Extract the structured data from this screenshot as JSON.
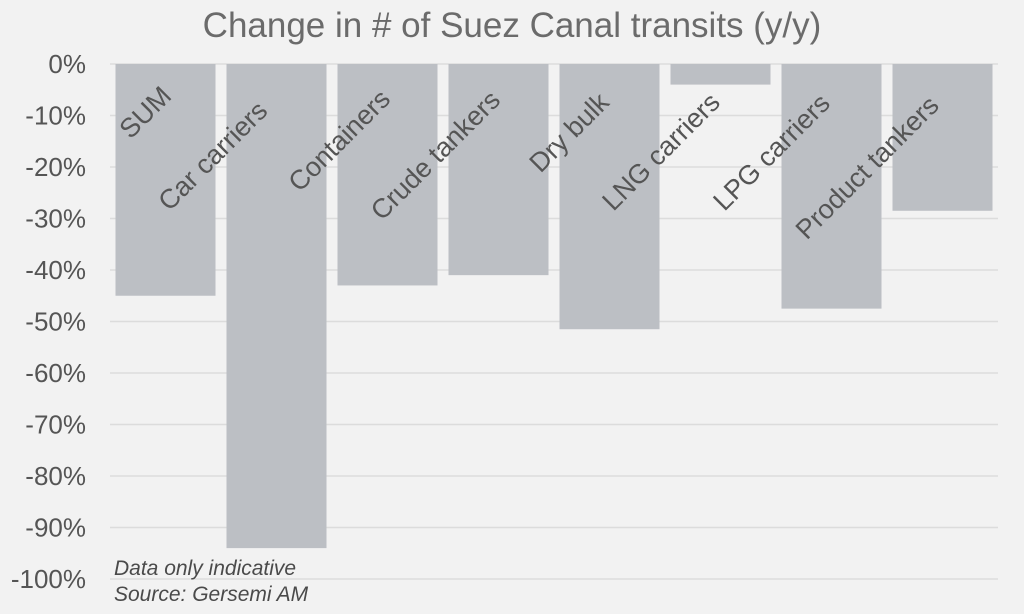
{
  "chart_data": {
    "type": "bar",
    "title": "Change in # of Suez Canal transits (y/y)",
    "categories": [
      "SUM",
      "Car carriers",
      "Containers",
      "Crude tankers",
      "Dry bulk",
      "LNG carriers",
      "LPG carriers",
      "Product tankers"
    ],
    "values": [
      -45,
      -94,
      -43,
      -41,
      -51.5,
      -4,
      -47.5,
      -28.5
    ],
    "ylim": [
      -100,
      0
    ],
    "yticks": [
      0,
      -10,
      -20,
      -30,
      -40,
      -50,
      -60,
      -70,
      -80,
      -90,
      -100
    ],
    "ytick_labels": [
      "0%",
      "-10%",
      "-20%",
      "-30%",
      "-40%",
      "-50%",
      "-60%",
      "-70%",
      "-80%",
      "-90%",
      "-100%"
    ],
    "xlabel": "",
    "ylabel": "",
    "grid": true,
    "colors": {
      "bar": "#bcbfc4",
      "grid": "#dcdcdc",
      "text": "#555555",
      "background": "#f2f2f2"
    }
  },
  "notes": {
    "line1": "Data only indicative",
    "line2": "Source: Gersemi AM"
  }
}
